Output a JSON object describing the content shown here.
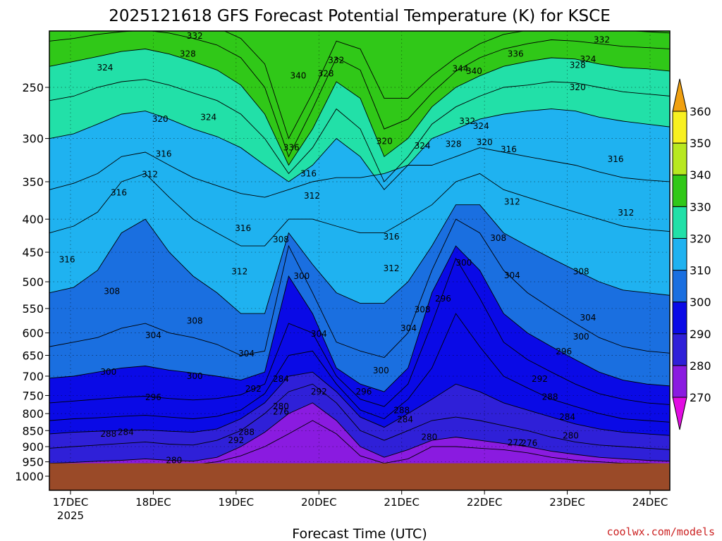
{
  "chart_data": {
    "type": "heatmap",
    "title": "2025121618 GFS Forecast Potential Temperature (K) for KSCE",
    "xlabel": "Forecast Time (UTC)",
    "ylabel": "",
    "credit": "coolwx.com/models",
    "y_scale": "log-pressure",
    "y_ticks": [
      250,
      300,
      350,
      400,
      450,
      500,
      550,
      600,
      650,
      700,
      750,
      800,
      850,
      900,
      950,
      1000
    ],
    "ylim": [
      1000,
      200
    ],
    "x_ticks": [
      {
        "label": "17DEC",
        "sub": "2025",
        "t": 6
      },
      {
        "label": "18DEC",
        "sub": "",
        "t": 30
      },
      {
        "label": "19DEC",
        "sub": "",
        "t": 54
      },
      {
        "label": "20DEC",
        "sub": "",
        "t": 78
      },
      {
        "label": "21DEC",
        "sub": "",
        "t": 102
      },
      {
        "label": "22DEC",
        "sub": "",
        "t": 126
      },
      {
        "label": "23DEC",
        "sub": "",
        "t": 150
      },
      {
        "label": "24DEC",
        "sub": "",
        "t": 174
      }
    ],
    "xlim_hours": [
      0,
      180
    ],
    "grid": true,
    "colorbar": {
      "boundaries": [
        270,
        280,
        290,
        300,
        310,
        320,
        330,
        340,
        350,
        360
      ],
      "labels": [
        "270",
        "280",
        "290",
        "300",
        "310",
        "320",
        "330",
        "340",
        "350",
        "360"
      ],
      "colors": [
        "#e20ce2",
        "#8a1be0",
        "#2f20d8",
        "#0a0ae6",
        "#1a6fe0",
        "#1fb2f0",
        "#22e0a8",
        "#30c818",
        "#b8e820",
        "#f8f020",
        "#f0a010"
      ],
      "extend": "both"
    },
    "surface_pressure_hpa": 955,
    "surface_color": "#9a4a28",
    "isentropes": [
      {
        "theta": 276,
        "p": [
          965,
          962,
          960,
          958,
          956,
          958,
          960,
          950,
          930,
          900,
          860,
          820,
          860,
          930,
          955,
          940,
          900,
          900,
          905,
          910,
          920,
          935,
          945,
          950,
          955,
          955,
          958
        ]
      },
      {
        "theta": 280,
        "p": [
          955,
          952,
          948,
          945,
          940,
          945,
          948,
          935,
          900,
          855,
          800,
          770,
          820,
          900,
          935,
          910,
          880,
          870,
          880,
          890,
          900,
          915,
          925,
          935,
          940,
          945,
          948
        ]
      },
      {
        "theta": 284,
        "p": [
          905,
          900,
          895,
          890,
          885,
          892,
          895,
          880,
          850,
          800,
          740,
          720,
          770,
          850,
          880,
          850,
          820,
          810,
          820,
          835,
          850,
          870,
          885,
          895,
          900,
          905,
          910
        ]
      },
      {
        "theta": 288,
        "p": [
          860,
          855,
          852,
          850,
          848,
          852,
          855,
          845,
          815,
          770,
          700,
          690,
          740,
          810,
          840,
          800,
          760,
          720,
          740,
          770,
          790,
          810,
          830,
          845,
          855,
          860,
          865
        ]
      },
      {
        "theta": 292,
        "p": [
          820,
          815,
          812,
          808,
          805,
          810,
          815,
          808,
          790,
          745,
          650,
          640,
          720,
          790,
          815,
          760,
          680,
          560,
          630,
          700,
          730,
          760,
          780,
          800,
          815,
          820,
          825
        ]
      },
      {
        "theta": 296,
        "p": [
          770,
          765,
          760,
          755,
          752,
          758,
          762,
          758,
          748,
          720,
          580,
          600,
          700,
          760,
          780,
          720,
          580,
          460,
          530,
          620,
          660,
          690,
          720,
          745,
          760,
          770,
          775
        ]
      },
      {
        "theta": 300,
        "p": [
          705,
          700,
          690,
          680,
          675,
          685,
          692,
          700,
          710,
          690,
          490,
          560,
          680,
          720,
          740,
          680,
          520,
          440,
          480,
          560,
          600,
          630,
          660,
          690,
          710,
          720,
          725
        ]
      },
      {
        "theta": 304,
        "p": [
          630,
          620,
          610,
          590,
          580,
          600,
          610,
          625,
          650,
          640,
          440,
          520,
          620,
          640,
          655,
          600,
          480,
          400,
          420,
          480,
          520,
          550,
          580,
          610,
          630,
          640,
          645
        ]
      },
      {
        "theta": 308,
        "p": [
          520,
          510,
          480,
          420,
          400,
          450,
          490,
          520,
          560,
          560,
          420,
          470,
          520,
          540,
          540,
          500,
          440,
          380,
          380,
          420,
          440,
          460,
          480,
          500,
          515,
          520,
          525
        ]
      },
      {
        "theta": 312,
        "p": [
          420,
          410,
          390,
          350,
          340,
          370,
          400,
          420,
          440,
          440,
          400,
          400,
          410,
          420,
          420,
          400,
          380,
          350,
          340,
          360,
          370,
          380,
          390,
          400,
          410,
          415,
          418
        ]
      },
      {
        "theta": 316,
        "p": [
          360,
          352,
          340,
          320,
          315,
          330,
          345,
          355,
          365,
          370,
          360,
          350,
          345,
          345,
          340,
          330,
          330,
          320,
          310,
          315,
          320,
          325,
          330,
          338,
          345,
          348,
          350
        ]
      },
      {
        "theta": 320,
        "p": [
          300,
          295,
          285,
          275,
          272,
          280,
          290,
          298,
          310,
          330,
          350,
          330,
          300,
          320,
          360,
          330,
          300,
          290,
          280,
          275,
          272,
          270,
          272,
          278,
          282,
          285,
          288
        ]
      },
      {
        "theta": 324,
        "p": [
          262,
          258,
          250,
          245,
          243,
          248,
          255,
          262,
          275,
          300,
          340,
          310,
          270,
          290,
          350,
          320,
          285,
          268,
          258,
          250,
          248,
          245,
          246,
          250,
          254,
          256,
          258
        ]
      },
      {
        "theta": 328,
        "p": [
          232,
          228,
          224,
          220,
          218,
          222,
          228,
          235,
          248,
          275,
          330,
          290,
          245,
          260,
          320,
          300,
          268,
          250,
          240,
          232,
          228,
          225,
          226,
          230,
          233,
          234,
          236
        ]
      },
      {
        "theta": 332,
        "p": [
          212,
          210,
          207,
          205,
          204,
          206,
          210,
          215,
          225,
          250,
          320,
          270,
          225,
          235,
          290,
          280,
          255,
          236,
          225,
          218,
          214,
          211,
          212,
          214,
          216,
          217,
          218
        ]
      },
      {
        "theta": 336,
        "p": [
          201,
          200,
          200,
          200,
          200,
          200,
          200,
          202,
          210,
          230,
          300,
          255,
          212,
          218,
          260,
          260,
          240,
          225,
          214,
          207,
          204,
          202,
          202,
          203,
          204,
          205,
          206
        ]
      }
    ],
    "labels": [
      {
        "text": "332",
        "t": 42,
        "p": 208
      },
      {
        "text": "328",
        "t": 40,
        "p": 222
      },
      {
        "text": "324",
        "t": 16,
        "p": 233
      },
      {
        "text": "320",
        "t": 32,
        "p": 280
      },
      {
        "text": "316",
        "t": 33,
        "p": 317
      },
      {
        "text": "312",
        "t": 29,
        "p": 341
      },
      {
        "text": "316",
        "t": 20,
        "p": 364
      },
      {
        "text": "316",
        "t": 5,
        "p": 462
      },
      {
        "text": "308",
        "t": 18,
        "p": 517
      },
      {
        "text": "304",
        "t": 30,
        "p": 605
      },
      {
        "text": "308",
        "t": 42,
        "p": 575
      },
      {
        "text": "300",
        "t": 17,
        "p": 690
      },
      {
        "text": "296",
        "t": 30,
        "p": 755
      },
      {
        "text": "300",
        "t": 42,
        "p": 700
      },
      {
        "text": "288",
        "t": 17,
        "p": 860
      },
      {
        "text": "284",
        "t": 22,
        "p": 855
      },
      {
        "text": "280",
        "t": 36,
        "p": 945
      },
      {
        "text": "324",
        "t": 46,
        "p": 278
      },
      {
        "text": "316",
        "t": 56,
        "p": 413
      },
      {
        "text": "312",
        "t": 55,
        "p": 482
      },
      {
        "text": "304",
        "t": 57,
        "p": 646
      },
      {
        "text": "292",
        "t": 59,
        "p": 732
      },
      {
        "text": "288",
        "t": 57,
        "p": 855
      },
      {
        "text": "292",
        "t": 54,
        "p": 880
      },
      {
        "text": "308",
        "t": 67,
        "p": 430
      },
      {
        "text": "300",
        "t": 73,
        "p": 490
      },
      {
        "text": "340",
        "t": 72,
        "p": 240
      },
      {
        "text": "336",
        "t": 70,
        "p": 310
      },
      {
        "text": "332",
        "t": 83,
        "p": 227
      },
      {
        "text": "328",
        "t": 80,
        "p": 238
      },
      {
        "text": "316",
        "t": 75,
        "p": 340
      },
      {
        "text": "312",
        "t": 76,
        "p": 368
      },
      {
        "text": "284",
        "t": 67,
        "p": 707
      },
      {
        "text": "280",
        "t": 67,
        "p": 780
      },
      {
        "text": "276",
        "t": 67,
        "p": 795
      },
      {
        "text": "292",
        "t": 78,
        "p": 740
      },
      {
        "text": "304",
        "t": 78,
        "p": 602
      },
      {
        "text": "320",
        "t": 97,
        "p": 303
      },
      {
        "text": "324",
        "t": 108,
        "p": 308
      },
      {
        "text": "316",
        "t": 99,
        "p": 426
      },
      {
        "text": "312",
        "t": 99,
        "p": 477
      },
      {
        "text": "308",
        "t": 108,
        "p": 552
      },
      {
        "text": "304",
        "t": 104,
        "p": 590
      },
      {
        "text": "300",
        "t": 96,
        "p": 686
      },
      {
        "text": "296",
        "t": 91,
        "p": 740
      },
      {
        "text": "288",
        "t": 102,
        "p": 791
      },
      {
        "text": "284",
        "t": 103,
        "p": 817
      },
      {
        "text": "280",
        "t": 110,
        "p": 870
      },
      {
        "text": "332",
        "t": 121,
        "p": 282
      },
      {
        "text": "328",
        "t": 117,
        "p": 306
      },
      {
        "text": "324",
        "t": 125,
        "p": 287
      },
      {
        "text": "320",
        "t": 126,
        "p": 304
      },
      {
        "text": "344",
        "t": 119,
        "p": 234
      },
      {
        "text": "340",
        "t": 123,
        "p": 236
      },
      {
        "text": "336",
        "t": 135,
        "p": 222
      },
      {
        "text": "316",
        "t": 133,
        "p": 312
      },
      {
        "text": "312",
        "t": 134,
        "p": 376
      },
      {
        "text": "308",
        "t": 130,
        "p": 428
      },
      {
        "text": "304",
        "t": 134,
        "p": 489
      },
      {
        "text": "300",
        "t": 120,
        "p": 467
      },
      {
        "text": "296",
        "t": 114,
        "p": 531
      },
      {
        "text": "272",
        "t": 135,
        "p": 888
      },
      {
        "text": "276",
        "t": 139,
        "p": 889
      },
      {
        "text": "280",
        "t": 151,
        "p": 866
      },
      {
        "text": "284",
        "t": 150,
        "p": 810
      },
      {
        "text": "288",
        "t": 145,
        "p": 754
      },
      {
        "text": "292",
        "t": 142,
        "p": 707
      },
      {
        "text": "296",
        "t": 149,
        "p": 641
      },
      {
        "text": "300",
        "t": 154,
        "p": 608
      },
      {
        "text": "304",
        "t": 156,
        "p": 568
      },
      {
        "text": "308",
        "t": 154,
        "p": 482
      },
      {
        "text": "312",
        "t": 167,
        "p": 391
      },
      {
        "text": "316",
        "t": 164,
        "p": 323
      },
      {
        "text": "320",
        "t": 153,
        "p": 250
      },
      {
        "text": "324",
        "t": 156,
        "p": 226
      },
      {
        "text": "328",
        "t": 153,
        "p": 231
      },
      {
        "text": "332",
        "t": 160,
        "p": 211
      }
    ]
  }
}
